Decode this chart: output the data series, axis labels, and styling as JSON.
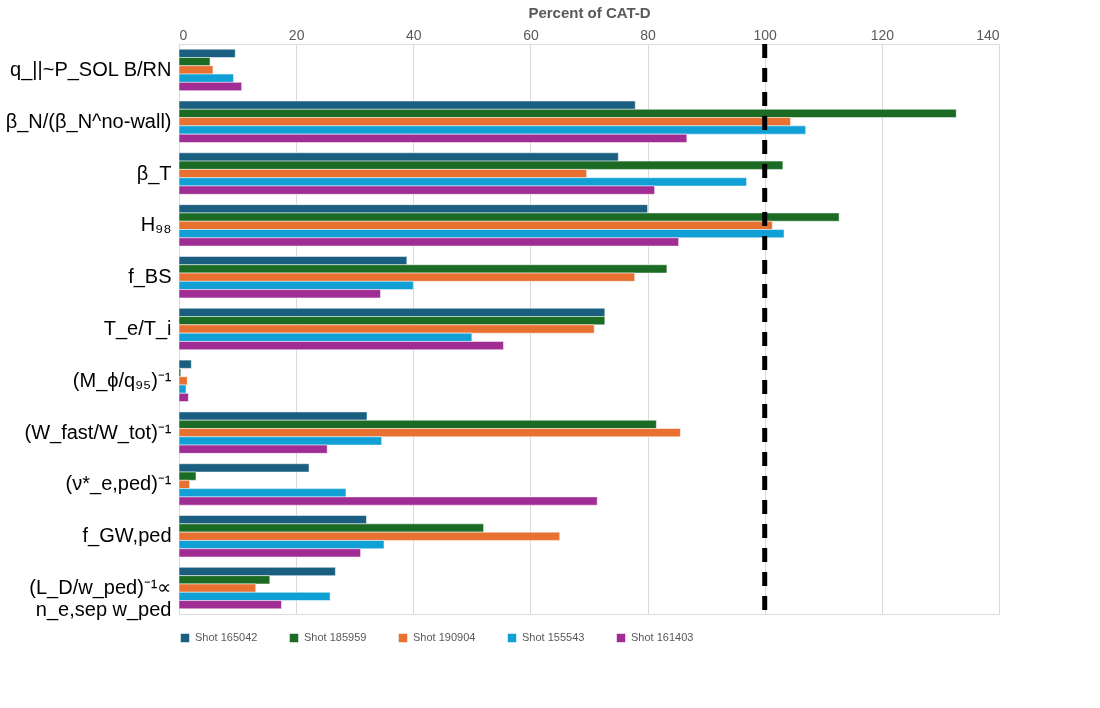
{
  "chart_data": {
    "type": "bar",
    "orientation": "horizontal",
    "xlabel": "Percent of CAT-D",
    "categories": [
      "q_||~P_SOL B/RN",
      "β_N/(β_N^no-wall)",
      "β_T",
      "H₉₈",
      "f_BS",
      "T_e/T_i",
      "(M_ϕ/q₉₅)⁻¹",
      "(W_fast/W_tot)⁻¹",
      "(ν*_e,ped)⁻¹",
      "f_GW,ped",
      "(L_D/w_ped)⁻¹∝\nn_e,sep w_ped"
    ],
    "series": [
      {
        "name": "Shot 165042",
        "color": "#1a5e80",
        "values": [
          9.6,
          77.9,
          75.0,
          80.0,
          38.9,
          72.7,
          2.1,
          32.1,
          22.2,
          32.0,
          26.7
        ]
      },
      {
        "name": "Shot 185959",
        "color": "#1c6b24",
        "values": [
          5.3,
          132.7,
          103.1,
          112.7,
          83.3,
          72.7,
          0.3,
          81.5,
          2.9,
          52.0,
          15.5
        ]
      },
      {
        "name": "Shot 190904",
        "color": "#e87132",
        "values": [
          5.8,
          104.4,
          69.6,
          101.3,
          77.8,
          70.9,
          1.4,
          85.6,
          1.8,
          65.0,
          13.1
        ]
      },
      {
        "name": "Shot 155543",
        "color": "#10a0d6",
        "values": [
          9.3,
          107.0,
          96.9,
          103.3,
          40.0,
          50.0,
          1.2,
          34.6,
          28.5,
          35.0,
          25.8
        ]
      },
      {
        "name": "Shot 161403",
        "color": "#a02d93",
        "values": [
          10.7,
          86.7,
          81.2,
          85.3,
          34.4,
          55.4,
          1.6,
          25.3,
          71.4,
          31.0,
          17.5
        ]
      }
    ],
    "xlim": [
      0,
      140
    ],
    "xticks": [
      0,
      20,
      40,
      60,
      80,
      100,
      120,
      140
    ],
    "ref_lines": [
      {
        "axis": "x",
        "value": 100,
        "color": "#000000",
        "line_style": "dashed"
      }
    ],
    "grid": "x",
    "legend": "bottom"
  }
}
